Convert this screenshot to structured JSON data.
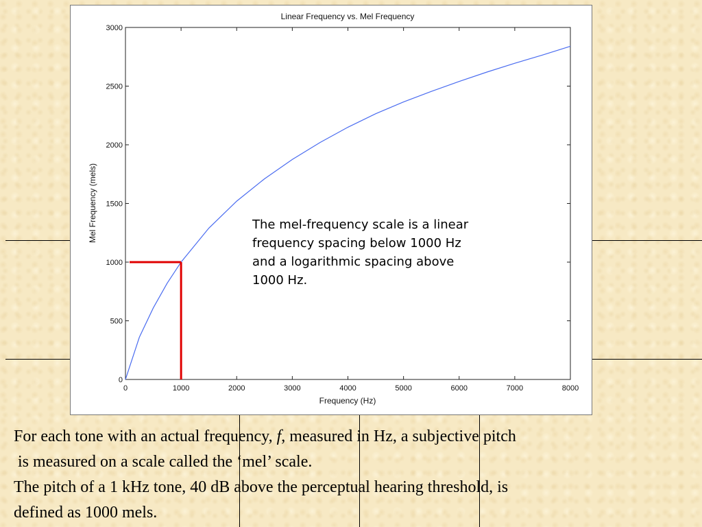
{
  "chart_data": {
    "type": "line",
    "title": "Linear Frequency vs. Mel Frequency",
    "xlabel": "Frequency (Hz)",
    "ylabel": "Mel Frequency (mels)",
    "xlim": [
      0,
      8000
    ],
    "ylim": [
      0,
      3000
    ],
    "x_ticks": [
      0,
      1000,
      2000,
      3000,
      4000,
      5000,
      6000,
      7000,
      8000
    ],
    "y_ticks": [
      0,
      500,
      1000,
      1500,
      2000,
      2500,
      3000
    ],
    "grid": false,
    "series": [
      {
        "color": "#4a6cf0",
        "x": [
          0,
          250,
          500,
          750,
          1000,
          1500,
          2000,
          2500,
          3000,
          3500,
          4000,
          4500,
          5000,
          5500,
          6000,
          6500,
          7000,
          7500,
          8000
        ],
        "y": [
          0,
          360,
          610,
          820,
          1000,
          1290,
          1520,
          1710,
          1875,
          2020,
          2150,
          2265,
          2365,
          2455,
          2540,
          2620,
          2695,
          2765,
          2840
        ]
      }
    ],
    "reference_lines": {
      "color": "#e00000",
      "x": 1000,
      "y": 1000
    }
  },
  "annotation_lines": [
    "The mel-frequency scale is a linear",
    "frequency spacing below 1000 Hz",
    "and a logarithmic spacing above",
    "1000 Hz."
  ],
  "body": {
    "line1_pre": "For each tone with an actual frequency, ",
    "line1_var": "f",
    "line1_post": ", measured in Hz, a subjective pitch",
    "line2": " is measured on a scale called the ‘mel’ scale.",
    "line3": "The pitch of a 1 kHz tone, 40 dB above the perceptual hearing threshold, is",
    "line4": "defined as 1000 mels."
  }
}
